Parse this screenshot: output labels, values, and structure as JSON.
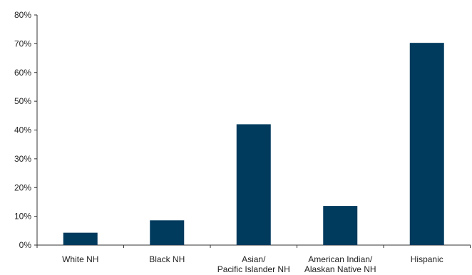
{
  "chart_data": {
    "type": "bar",
    "title": "",
    "xlabel": "",
    "ylabel": "",
    "categories": [
      [
        "White NH"
      ],
      [
        "Black NH"
      ],
      [
        "Asian/",
        "Pacific Islander NH"
      ],
      [
        "American Indian/",
        "Alaskan Native NH"
      ],
      [
        "Hispanic"
      ]
    ],
    "values": [
      4.3,
      8.6,
      42.0,
      13.6,
      70.3
    ],
    "ylim": [
      0,
      80
    ],
    "yticks": [
      0,
      10,
      20,
      30,
      40,
      50,
      60,
      70,
      80
    ],
    "ytick_labels": [
      "0%",
      "10%",
      "20%",
      "30%",
      "40%",
      "50%",
      "60%",
      "70%",
      "80%"
    ],
    "grid": false,
    "legend": "none",
    "bar_color": "#003a5d"
  }
}
